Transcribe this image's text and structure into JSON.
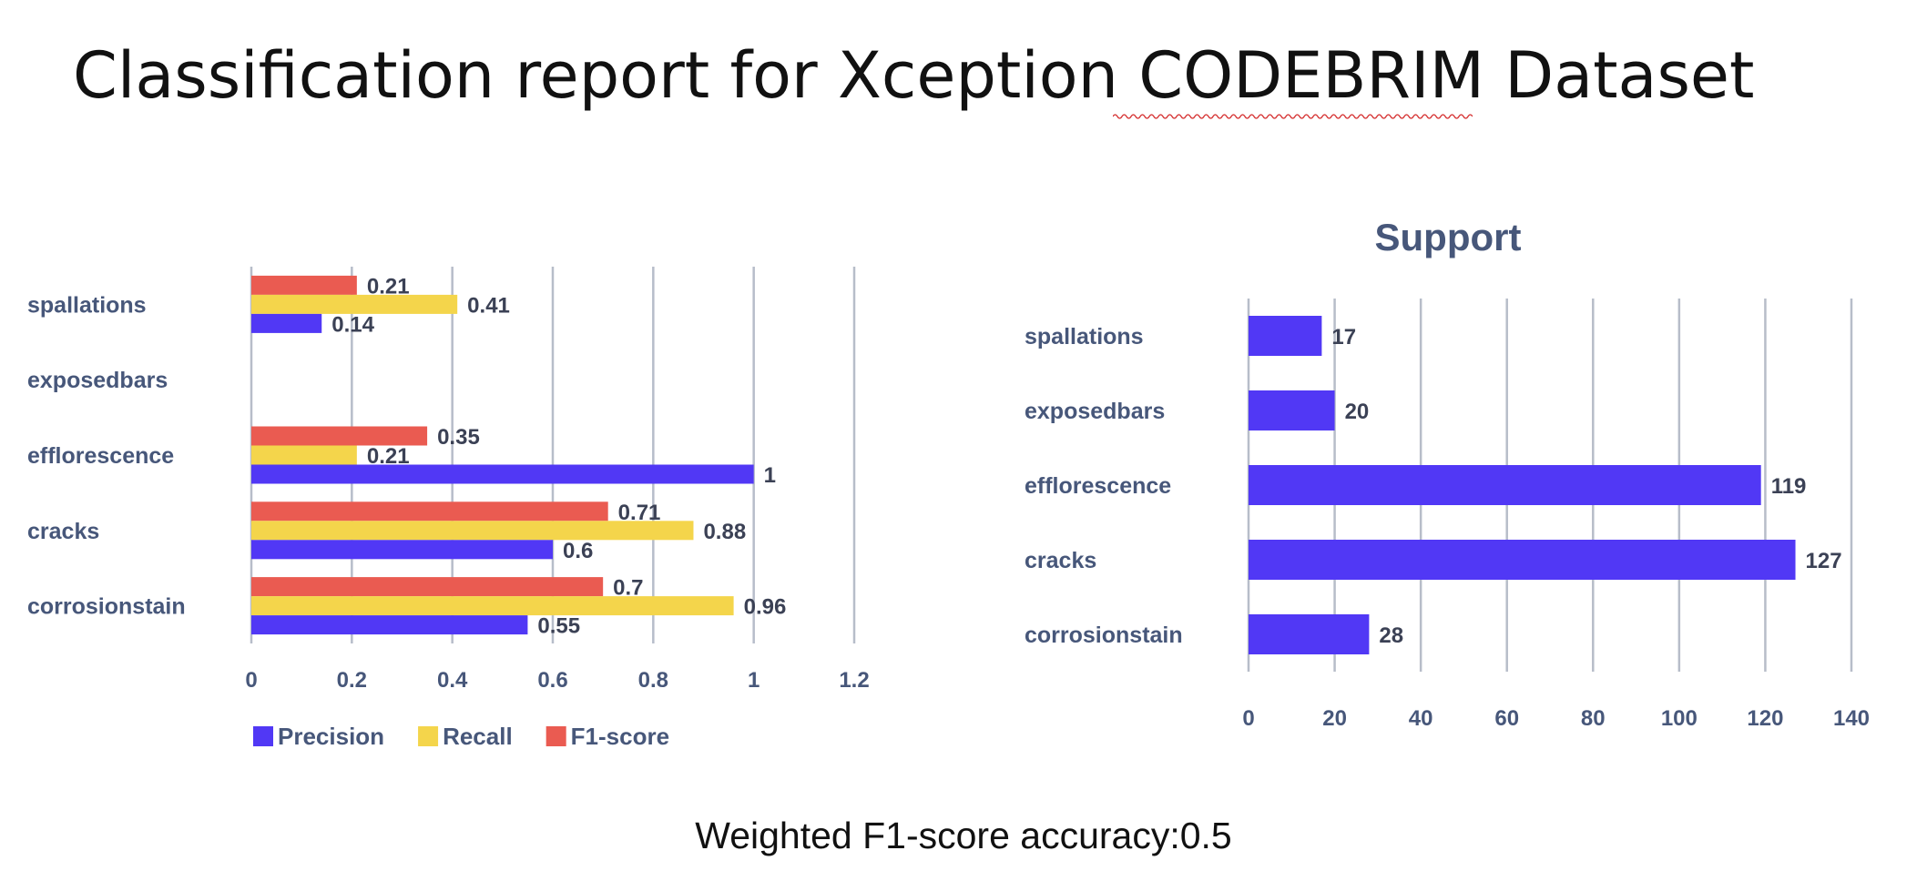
{
  "page": {
    "title": "Classification report for Xception CODEBRIM Dataset",
    "footer": "Weighted F1-score accuracy:0.5"
  },
  "colors": {
    "precision": "#5138f5",
    "recall": "#f4d54b",
    "f1": "#ea5b51",
    "support": "#5138f5",
    "grid": "#b7bdc9",
    "label": "#47577a"
  },
  "chart_data": [
    {
      "type": "bar",
      "orientation": "horizontal",
      "title": "",
      "categories": [
        "spallations",
        "exposedbars",
        "efflorescence",
        "cracks",
        "corrosionstain"
      ],
      "series": [
        {
          "name": "Precision",
          "values": [
            0.14,
            null,
            1,
            0.6,
            0.55
          ]
        },
        {
          "name": "Recall",
          "values": [
            0.41,
            null,
            0.21,
            0.88,
            0.96
          ]
        },
        {
          "name": "F1-score",
          "values": [
            0.21,
            null,
            0.35,
            0.71,
            0.7
          ]
        }
      ],
      "xlim": [
        0,
        1.2
      ],
      "xticks": [
        "0",
        "0.2",
        "0.4",
        "0.6",
        "0.8",
        "1",
        "1.2"
      ],
      "grid": true,
      "legend": "bottom"
    },
    {
      "type": "bar",
      "orientation": "horizontal",
      "title": "Support",
      "categories": [
        "spallations",
        "exposedbars",
        "efflorescence",
        "cracks",
        "corrosionstain"
      ],
      "series": [
        {
          "name": "",
          "values": [
            17,
            20,
            119,
            127,
            28
          ]
        }
      ],
      "xlim": [
        0,
        140
      ],
      "xticks": [
        "0",
        "20",
        "40",
        "60",
        "80",
        "100",
        "120",
        "140"
      ],
      "grid": true,
      "legend": "none"
    }
  ]
}
